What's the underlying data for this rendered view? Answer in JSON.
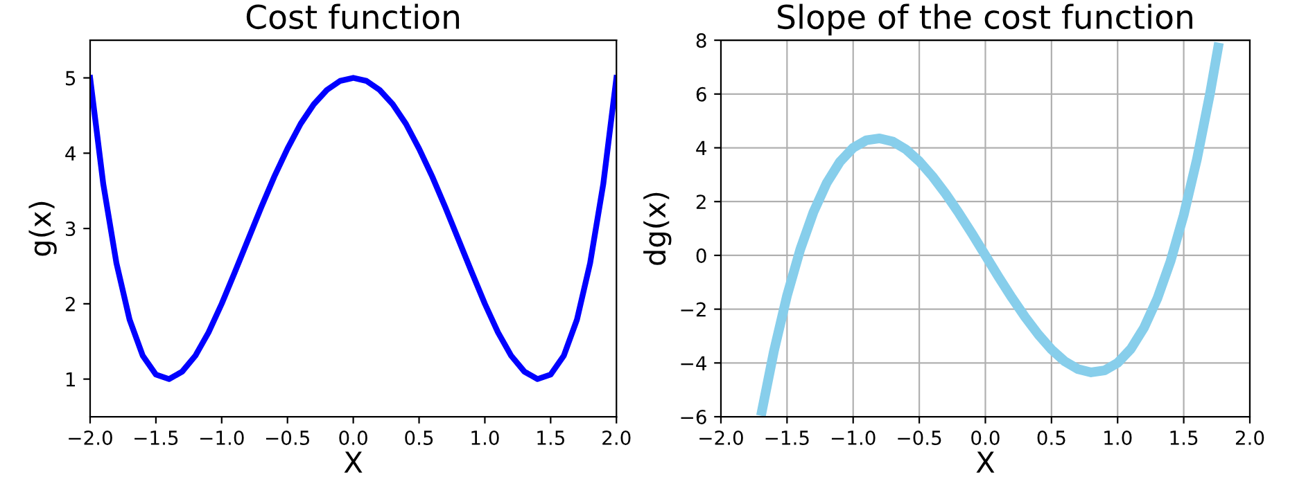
{
  "chart_data": [
    {
      "type": "line",
      "title": "Cost function",
      "xlabel": "X",
      "ylabel": "g(x)",
      "xlim": [
        -2,
        2
      ],
      "ylim": [
        0.5,
        5.5
      ],
      "xticks": [
        {
          "value": -2,
          "label": "−2.0"
        },
        {
          "value": -1.5,
          "label": "−1.5"
        },
        {
          "value": -1,
          "label": "−1.0"
        },
        {
          "value": -0.5,
          "label": "−0.5"
        },
        {
          "value": 0,
          "label": "0.0"
        },
        {
          "value": 0.5,
          "label": "0.5"
        },
        {
          "value": 1,
          "label": "1.0"
        },
        {
          "value": 1.5,
          "label": "1.5"
        },
        {
          "value": 2,
          "label": "2.0"
        }
      ],
      "yticks": [
        1,
        2,
        3,
        4,
        5
      ],
      "grid": false,
      "line_style": "solid",
      "marker": "none",
      "series": [
        {
          "color": "#0000ff",
          "x": [
            -2,
            -1.9,
            -1.8,
            -1.7,
            -1.6,
            -1.5,
            -1.4,
            -1.3,
            -1.2,
            -1.1,
            -1,
            -0.9,
            -0.8,
            -0.7,
            -0.6,
            -0.5,
            -0.4,
            -0.3,
            -0.2,
            -0.1,
            0,
            0.1,
            0.2,
            0.3,
            0.4,
            0.5,
            0.6,
            0.7,
            0.8,
            0.9,
            1,
            1.1,
            1.2,
            1.3,
            1.4,
            1.5,
            1.6,
            1.7,
            1.8,
            1.9,
            2
          ],
          "values": [
            5,
            3.59,
            2.54,
            1.79,
            1.31,
            1.06,
            1.0,
            1.1,
            1.31,
            1.62,
            2,
            2.42,
            2.85,
            3.28,
            3.69,
            4.06,
            4.39,
            4.65,
            4.84,
            4.96,
            5,
            4.96,
            4.84,
            4.65,
            4.39,
            4.06,
            3.69,
            3.28,
            2.85,
            2.42,
            2,
            1.62,
            1.31,
            1.1,
            1.0,
            1.06,
            1.31,
            1.79,
            2.54,
            3.59,
            5
          ]
        }
      ]
    },
    {
      "type": "line",
      "title": "Slope of the cost function",
      "xlabel": "X",
      "ylabel": "dg(x)",
      "xlim": [
        -2,
        2
      ],
      "ylim": [
        -6,
        8
      ],
      "xticks": [
        {
          "value": -2,
          "label": "−2.0"
        },
        {
          "value": -1.5,
          "label": "−1.5"
        },
        {
          "value": -1,
          "label": "−1.0"
        },
        {
          "value": -0.5,
          "label": "−0.5"
        },
        {
          "value": 0,
          "label": "0.0"
        },
        {
          "value": 0.5,
          "label": "0.5"
        },
        {
          "value": 1,
          "label": "1.0"
        },
        {
          "value": 1.5,
          "label": "1.5"
        },
        {
          "value": 2,
          "label": "2.0"
        }
      ],
      "yticks": [
        {
          "value": -6,
          "label": "−6"
        },
        {
          "value": -4,
          "label": "−4"
        },
        {
          "value": -2,
          "label": "−2"
        },
        0,
        2,
        4,
        6,
        8
      ],
      "grid": true,
      "line_style": "solid",
      "marker": "none",
      "series": [
        {
          "color": "#87ceeb",
          "x": [
            -1.69,
            -1.6,
            -1.5,
            -1.4,
            -1.3,
            -1.2,
            -1.1,
            -1,
            -0.9,
            -0.8,
            -0.7,
            -0.6,
            -0.5,
            -0.4,
            -0.3,
            -0.2,
            -0.1,
            0,
            0.1,
            0.2,
            0.3,
            0.4,
            0.5,
            0.6,
            0.7,
            0.8,
            0.9,
            1,
            1.1,
            1.2,
            1.3,
            1.4,
            1.5,
            1.6,
            1.7,
            1.76
          ],
          "values": [
            -5.79,
            -3.58,
            -1.5,
            0.22,
            1.61,
            2.69,
            3.48,
            4,
            4.28,
            4.35,
            4.23,
            3.94,
            3.5,
            2.94,
            2.29,
            1.57,
            0.8,
            0,
            -0.8,
            -1.57,
            -2.29,
            -2.94,
            -3.5,
            -3.94,
            -4.23,
            -4.35,
            -4.28,
            -4,
            -3.48,
            -2.69,
            -1.61,
            -0.22,
            1.5,
            3.58,
            6.05,
            7.73
          ]
        }
      ]
    }
  ]
}
